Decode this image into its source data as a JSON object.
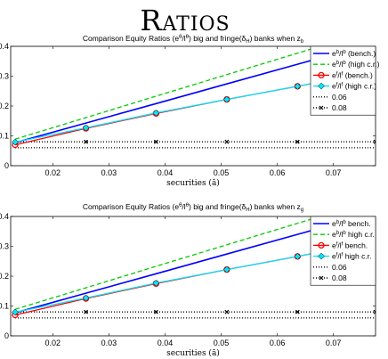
{
  "page": {
    "heading": "Ratios"
  },
  "chart_data": [
    {
      "type": "line",
      "title_main": "Comparison Equity Ratios (e",
      "title_sup1": "θ",
      "title_mid1": "/l",
      "title_sup2": "θ",
      "title_mid2": ") big and fringe(δ",
      "title_sub1": "H",
      "title_mid3": ") banks when z",
      "title_sub2": "b",
      "xlabel": "securities (ā)",
      "ylabel": "",
      "xlim": [
        0.0125,
        0.0775
      ],
      "ylim": [
        0,
        0.4
      ],
      "xticks": [
        "0.02",
        "0.03",
        "0.04",
        "0.05",
        "0.06",
        "0.07"
      ],
      "yticks": [
        "0",
        "0.1",
        "0.2",
        "0.3",
        "0.4"
      ],
      "grid": false,
      "legend_position": "top-right",
      "x": [
        0.0133,
        0.0259,
        0.0384,
        0.051,
        0.0636,
        0.0775
      ],
      "series": [
        {
          "name": "e^b/l^b (bench.)",
          "legend_base": "e",
          "legend_sup1": "b",
          "legend_mid": "/l",
          "legend_sup2": "b",
          "legend_suffix": " (bench.)",
          "color": "#0000ff",
          "dash": "",
          "marker": "none",
          "values": [
            0.077,
            0.143,
            0.208,
            0.274,
            0.34,
            0.412
          ]
        },
        {
          "name": "e^b/l^b (high c.r.)",
          "legend_base": "e",
          "legend_sup1": "b",
          "legend_mid": "/l",
          "legend_sup2": "b",
          "legend_suffix": " (high c.r.)",
          "color": "#00cc00",
          "dash": "5,3",
          "marker": "none",
          "values": [
            0.089,
            0.161,
            0.233,
            0.305,
            0.377,
            0.456
          ]
        },
        {
          "name": "e^f/l^f (bench.)",
          "legend_base": "e",
          "legend_sup1": "f",
          "legend_mid": "/l",
          "legend_sup2": "f",
          "legend_suffix": " (bench.)",
          "color": "#ff0000",
          "dash": "",
          "marker": "circle",
          "values": [
            0.07,
            0.125,
            0.175,
            0.222,
            0.266,
            0.316
          ]
        },
        {
          "name": "e^f/l^f (high c.r.)",
          "legend_base": "e",
          "legend_sup1": "f",
          "legend_mid": "/l",
          "legend_sup2": "f",
          "legend_suffix": " (high c.r.)",
          "color": "#00e5ff",
          "dash": "",
          "marker": "diamond",
          "values": [
            0.079,
            0.127,
            0.177,
            0.222,
            0.266,
            0.316
          ]
        },
        {
          "name": "0.06",
          "legend_base": "0.06",
          "color": "#000000",
          "dash": "1,2",
          "marker": "none",
          "values": [
            0.06,
            0.06,
            0.06,
            0.06,
            0.06,
            0.06
          ]
        },
        {
          "name": "0.08",
          "legend_base": "0.08",
          "color": "#000000",
          "dash": "1,2",
          "marker": "x",
          "values": [
            0.08,
            0.08,
            0.08,
            0.08,
            0.08,
            0.08
          ]
        }
      ]
    },
    {
      "type": "line",
      "title_main": "Comparison Equity Ratios (e",
      "title_sup1": "θ",
      "title_mid1": "/l",
      "title_sup2": "θ",
      "title_mid2": ") big and fringe(δ",
      "title_sub1": "H",
      "title_mid3": ") banks when z",
      "title_sub2": "g",
      "xlabel": "securities (ā)",
      "ylabel": "",
      "xlim": [
        0.0125,
        0.0775
      ],
      "ylim": [
        0,
        0.4
      ],
      "xticks": [
        "0.02",
        "0.03",
        "0.04",
        "0.05",
        "0.06",
        "0.07"
      ],
      "yticks": [
        "0",
        "0.1",
        "0.2",
        "0.3",
        "0.4"
      ],
      "grid": false,
      "legend_position": "top-right",
      "x": [
        0.0133,
        0.0259,
        0.0384,
        0.051,
        0.0636,
        0.0775
      ],
      "series": [
        {
          "name": "e^b/l^b bench.",
          "legend_base": "e",
          "legend_sup1": "b",
          "legend_mid": "/l",
          "legend_sup2": "b",
          "legend_suffix": " bench.",
          "color": "#0000ff",
          "dash": "",
          "marker": "none",
          "values": [
            0.077,
            0.143,
            0.208,
            0.274,
            0.34,
            0.412
          ]
        },
        {
          "name": "e^b/l^b high c.r.",
          "legend_base": "e",
          "legend_sup1": "b",
          "legend_mid": "/l",
          "legend_sup2": "b",
          "legend_suffix": " high c.r.",
          "color": "#00cc00",
          "dash": "5,3",
          "marker": "none",
          "values": [
            0.089,
            0.161,
            0.233,
            0.305,
            0.377,
            0.456
          ]
        },
        {
          "name": "e^f/l^f bench.",
          "legend_base": "e",
          "legend_sup1": "f",
          "legend_mid": "/l",
          "legend_sup2": "f",
          "legend_suffix": " bench.",
          "color": "#ff0000",
          "dash": "",
          "marker": "circle",
          "values": [
            0.07,
            0.125,
            0.175,
            0.222,
            0.266,
            0.316
          ]
        },
        {
          "name": "e^f/l^f high c.r.",
          "legend_base": "e",
          "legend_sup1": "f",
          "legend_mid": "/l",
          "legend_sup2": "f",
          "legend_suffix": " high c.r.",
          "color": "#00e5ff",
          "dash": "",
          "marker": "diamond",
          "values": [
            0.079,
            0.127,
            0.177,
            0.222,
            0.266,
            0.316
          ]
        },
        {
          "name": "0.06",
          "legend_base": "0.06",
          "color": "#000000",
          "dash": "1,2",
          "marker": "none",
          "values": [
            0.06,
            0.06,
            0.06,
            0.06,
            0.06,
            0.06
          ]
        },
        {
          "name": "0.08",
          "legend_base": "0.08",
          "color": "#000000",
          "dash": "1,2",
          "marker": "x",
          "values": [
            0.08,
            0.08,
            0.08,
            0.08,
            0.08,
            0.08
          ]
        }
      ]
    }
  ]
}
